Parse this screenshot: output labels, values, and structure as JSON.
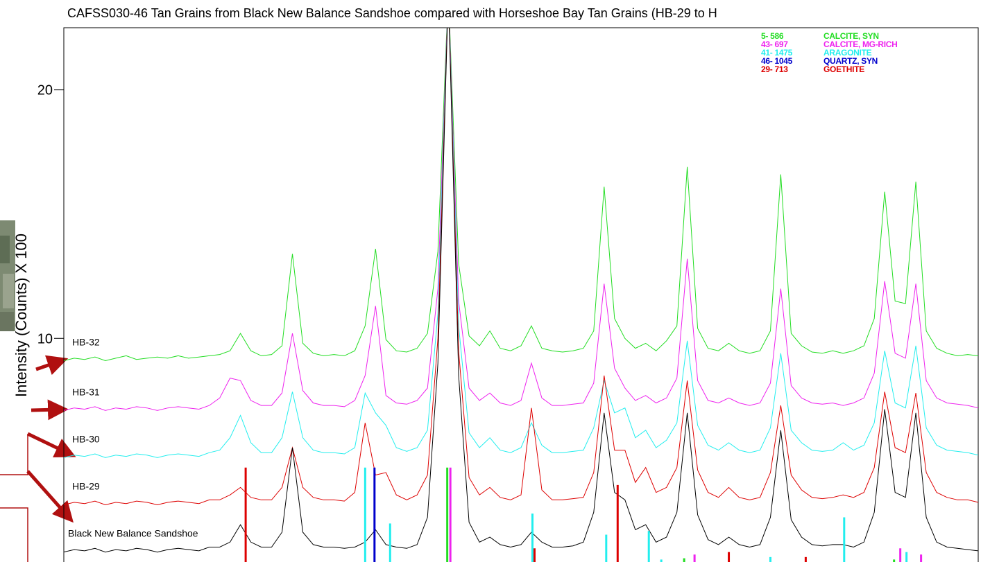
{
  "chart_data": {
    "type": "line",
    "title": "CAFSS030-46 Tan Grains from Black New Balance Sandshoe compared with Horseshoe Bay Tan Grains (HB-29 to H",
    "y_label": "Intensity (Counts) X 100",
    "ylim": [
      1,
      22.5
    ],
    "yticks": [
      10,
      20
    ],
    "series": [
      {
        "name": "HB-32",
        "color": "#22dd22",
        "values": [
          9.1,
          9.2,
          9.15,
          9.25,
          9.1,
          9.2,
          9.3,
          9.15,
          9.2,
          9.25,
          9.2,
          9.3,
          9.2,
          9.25,
          9.3,
          9.35,
          9.5,
          10.2,
          9.5,
          9.3,
          9.35,
          9.7,
          13.4,
          9.8,
          9.4,
          9.3,
          9.35,
          9.3,
          9.5,
          10.5,
          13.6,
          9.95,
          9.5,
          9.45,
          9.6,
          10.2,
          13.5,
          24,
          13,
          10.1,
          9.7,
          10.3,
          9.6,
          9.5,
          9.7,
          10.5,
          9.6,
          9.5,
          9.45,
          9.5,
          9.6,
          10.3,
          16.1,
          10.8,
          10.0,
          9.6,
          9.8,
          9.5,
          9.9,
          10.5,
          16.9,
          10.4,
          9.6,
          9.5,
          9.8,
          9.5,
          9.4,
          9.5,
          10.3,
          16.6,
          10.2,
          9.7,
          9.45,
          9.4,
          9.5,
          9.4,
          9.5,
          9.7,
          10.8,
          15.9,
          11.5,
          11.4,
          16.3,
          10.3,
          9.6,
          9.4,
          9.3,
          9.35,
          9.3
        ]
      },
      {
        "name": "HB-31",
        "color": "#ee22ee",
        "values": [
          7.1,
          7.2,
          7.15,
          7.25,
          7.1,
          7.2,
          7.15,
          7.25,
          7.2,
          7.1,
          7.2,
          7.25,
          7.2,
          7.15,
          7.3,
          7.6,
          8.4,
          8.3,
          7.5,
          7.3,
          7.3,
          7.8,
          10.2,
          7.9,
          7.4,
          7.3,
          7.3,
          7.25,
          7.5,
          8.5,
          11.3,
          7.7,
          7.4,
          7.35,
          7.5,
          8.0,
          12,
          24,
          11.5,
          8.0,
          7.5,
          7.8,
          7.4,
          7.3,
          7.5,
          9.0,
          7.6,
          7.3,
          7.3,
          7.35,
          7.4,
          8.2,
          12.2,
          8.8,
          8.0,
          7.5,
          7.7,
          7.4,
          7.6,
          8.4,
          13.2,
          8.3,
          7.5,
          7.4,
          7.6,
          7.4,
          7.3,
          7.4,
          8.2,
          12.0,
          8.1,
          7.6,
          7.4,
          7.35,
          7.4,
          7.3,
          7.4,
          7.6,
          8.6,
          12.3,
          9.4,
          9.2,
          12.2,
          8.3,
          7.6,
          7.4,
          7.35,
          7.3,
          7.2
        ]
      },
      {
        "name": "HB-30",
        "color": "#22eeee",
        "values": [
          5.2,
          5.3,
          5.25,
          5.35,
          5.2,
          5.3,
          5.25,
          5.35,
          5.3,
          5.2,
          5.3,
          5.35,
          5.3,
          5.25,
          5.4,
          5.5,
          6.0,
          6.9,
          5.8,
          5.4,
          5.4,
          6.0,
          7.85,
          6.0,
          5.5,
          5.4,
          5.4,
          5.35,
          5.6,
          7.8,
          7.0,
          6.5,
          5.6,
          5.45,
          5.6,
          6.3,
          11,
          24,
          10.5,
          6.2,
          5.6,
          6.0,
          5.5,
          5.4,
          5.6,
          6.6,
          5.7,
          5.4,
          5.4,
          5.45,
          5.5,
          6.4,
          8.3,
          7.0,
          7.2,
          6.0,
          6.3,
          5.6,
          5.9,
          6.6,
          9.9,
          6.5,
          5.7,
          5.5,
          5.8,
          5.5,
          5.4,
          5.5,
          6.4,
          9.4,
          6.3,
          5.8,
          5.5,
          5.45,
          5.5,
          5.8,
          5.5,
          5.7,
          6.6,
          9.5,
          7.4,
          7.2,
          9.7,
          6.4,
          5.7,
          5.5,
          5.45,
          5.4,
          5.3
        ]
      },
      {
        "name": "HB-29",
        "color": "#dd0000",
        "values": [
          3.3,
          3.4,
          3.35,
          3.45,
          3.3,
          3.4,
          3.35,
          3.45,
          3.4,
          3.3,
          3.4,
          3.45,
          3.4,
          3.35,
          3.5,
          3.5,
          3.7,
          4.0,
          3.6,
          3.5,
          3.5,
          4.0,
          5.6,
          4.0,
          3.6,
          3.5,
          3.5,
          3.45,
          3.8,
          6.6,
          4.5,
          4.6,
          3.7,
          3.5,
          3.7,
          4.5,
          10,
          24,
          9.5,
          4.4,
          3.7,
          4.0,
          3.6,
          3.5,
          3.7,
          7.2,
          3.9,
          3.5,
          3.5,
          3.55,
          3.6,
          4.6,
          8.5,
          5.5,
          5.5,
          4.2,
          4.8,
          3.8,
          4.0,
          4.8,
          8.3,
          4.7,
          3.8,
          3.6,
          4.0,
          3.6,
          3.5,
          3.6,
          4.6,
          7.3,
          4.5,
          3.9,
          3.6,
          3.55,
          3.6,
          3.7,
          3.6,
          3.8,
          4.8,
          7.85,
          5.6,
          5.4,
          7.8,
          4.6,
          3.8,
          3.6,
          3.5,
          3.5,
          3.4
        ]
      },
      {
        "name": "Black New Balance Sandshoe",
        "color": "#000000",
        "values": [
          1.4,
          1.5,
          1.45,
          1.55,
          1.4,
          1.5,
          1.45,
          1.55,
          1.5,
          1.4,
          1.5,
          1.55,
          1.5,
          1.45,
          1.6,
          1.6,
          1.8,
          2.5,
          1.8,
          1.6,
          1.6,
          2.2,
          5.6,
          2.2,
          1.7,
          1.6,
          1.6,
          1.55,
          1.6,
          1.8,
          2.3,
          1.7,
          1.6,
          1.55,
          1.7,
          2.8,
          9,
          24,
          8.5,
          2.6,
          1.8,
          2.0,
          1.7,
          1.6,
          1.7,
          2.2,
          1.8,
          1.6,
          1.6,
          1.65,
          1.8,
          3.0,
          7.0,
          3.8,
          3.5,
          2.3,
          2.5,
          1.8,
          2.0,
          3.0,
          7.0,
          2.9,
          1.9,
          1.7,
          2.0,
          1.7,
          1.6,
          1.7,
          2.8,
          6.3,
          2.7,
          2.0,
          1.7,
          1.65,
          1.7,
          1.7,
          1.6,
          1.8,
          3.0,
          7.15,
          3.8,
          3.6,
          7.0,
          2.8,
          1.8,
          1.6,
          1.55,
          1.5,
          1.45
        ]
      }
    ],
    "references": [
      {
        "card": "5- 586",
        "name": "CALCITE, SYN",
        "color": "#22dd22",
        "x": [
          36.9,
          59.7,
          79.9
        ],
        "values": [
          4.8,
          1.15,
          1.1
        ]
      },
      {
        "card": "43- 697",
        "name": "CALCITE, MG-RICH",
        "color": "#ee22ee",
        "x": [
          37.2,
          60.7,
          80.5,
          82.5
        ],
        "values": [
          4.8,
          1.3,
          1.55,
          1.3
        ]
      },
      {
        "card": "41- 1475",
        "name": "ARAGONITE",
        "color": "#22eeee",
        "x": [
          29,
          31.4,
          45.1,
          52.2,
          56.3,
          57.5,
          68,
          75.1,
          81.1
        ],
        "values": [
          4.8,
          2.55,
          2.95,
          2.1,
          2.25,
          1.1,
          1.2,
          2.8,
          1.4
        ]
      },
      {
        "card": "46- 1045",
        "name": "QUARTZ, SYN",
        "color": "#0000cc",
        "x": [
          29.9
        ],
        "values": [
          4.8
        ]
      },
      {
        "card": "29- 713",
        "name": "GOETHITE",
        "color": "#dd0000",
        "x": [
          17.5,
          45.3,
          53.3,
          64,
          71.4
        ],
        "values": [
          4.8,
          1.55,
          4.1,
          1.4,
          1.2
        ]
      }
    ]
  }
}
